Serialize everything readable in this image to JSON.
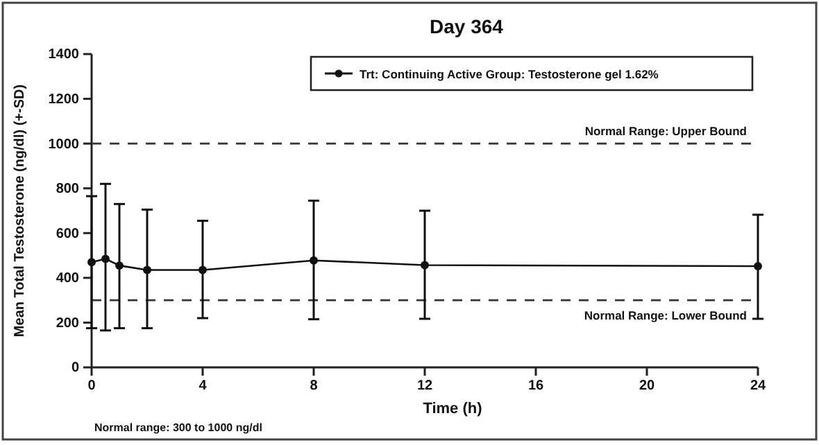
{
  "chart_data": {
    "type": "line",
    "title": "Day 364",
    "xlabel": "Time (h)",
    "ylabel": "Mean Total Testosterone (ng/dl) (+-SD)",
    "x": [
      0,
      0.5,
      1,
      2,
      4,
      8,
      12,
      24
    ],
    "series": [
      {
        "name": "Trt: Continuing Active Group: Testosterone gel 1.62%",
        "color": "#111111",
        "values": [
          470,
          485,
          455,
          435,
          435,
          478,
          457,
          452
        ],
        "errors": [
          [
            175,
            765
          ],
          [
            165,
            820
          ],
          [
            175,
            730
          ],
          [
            175,
            705
          ],
          [
            220,
            655
          ],
          [
            215,
            745
          ],
          [
            217,
            700
          ],
          [
            217,
            682
          ]
        ]
      }
    ],
    "xlim": [
      0,
      24
    ],
    "xticks": [
      0,
      4,
      8,
      12,
      16,
      20,
      24
    ],
    "ylim": [
      0,
      1400
    ],
    "yticks": [
      0,
      200,
      400,
      600,
      800,
      1000,
      1200,
      1400
    ],
    "ref_lines": [
      {
        "axis": "y",
        "value": 1000,
        "label": "Normal Range: Upper Bound",
        "line_style": "dashed"
      },
      {
        "axis": "y",
        "value": 300,
        "label": "Normal Range: Lower Bound",
        "line_style": "dashed"
      }
    ],
    "annotations": [
      "Normal range: 300 to 1000 ng/dl"
    ],
    "legend": "top right",
    "marker": "circle",
    "line_style": "solid",
    "grid": false
  }
}
